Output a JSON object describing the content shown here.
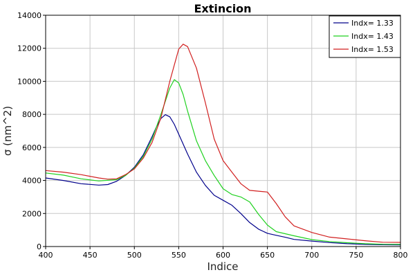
{
  "chart_data": {
    "type": "line",
    "title": "Extincion",
    "xlabel": "Indice",
    "ylabel": "σ (nm^2)",
    "xlim": [
      400,
      800
    ],
    "ylim": [
      0,
      14000
    ],
    "xticks": [
      400,
      450,
      500,
      550,
      600,
      650,
      700,
      750,
      800
    ],
    "yticks": [
      0,
      2000,
      4000,
      6000,
      8000,
      10000,
      12000,
      14000
    ],
    "grid": true,
    "legend_position": "top-right",
    "series": [
      {
        "name": "Indx= 1.33",
        "color": "#00008b",
        "x": [
          400,
          420,
          440,
          460,
          470,
          480,
          490,
          500,
          510,
          520,
          525,
          530,
          535,
          540,
          545,
          550,
          560,
          570,
          580,
          590,
          600,
          610,
          620,
          630,
          640,
          650,
          660,
          670,
          680,
          700,
          720,
          740,
          760,
          780,
          800
        ],
        "y": [
          4150,
          4000,
          3800,
          3720,
          3750,
          3950,
          4300,
          4800,
          5550,
          6650,
          7250,
          7750,
          7980,
          7850,
          7400,
          6800,
          5600,
          4500,
          3700,
          3100,
          2800,
          2500,
          2000,
          1450,
          1050,
          800,
          680,
          560,
          430,
          330,
          240,
          170,
          130,
          110,
          100
        ]
      },
      {
        "name": "Indx= 1.43",
        "color": "#1fd11f",
        "x": [
          400,
          420,
          440,
          460,
          480,
          490,
          500,
          510,
          520,
          530,
          540,
          545,
          550,
          555,
          560,
          570,
          580,
          590,
          600,
          610,
          620,
          630,
          640,
          650,
          660,
          680,
          700,
          720,
          740,
          760,
          780,
          800
        ],
        "y": [
          4450,
          4320,
          4100,
          3970,
          4050,
          4300,
          4750,
          5450,
          6500,
          8000,
          9600,
          10100,
          9900,
          9200,
          8200,
          6400,
          5200,
          4300,
          3500,
          3150,
          3000,
          2700,
          1950,
          1300,
          900,
          650,
          420,
          300,
          230,
          170,
          140,
          130
        ]
      },
      {
        "name": "Indx= 1.53",
        "color": "#d11f1f",
        "x": [
          400,
          420,
          440,
          460,
          470,
          480,
          490,
          500,
          510,
          520,
          530,
          540,
          550,
          555,
          560,
          570,
          580,
          590,
          600,
          610,
          620,
          630,
          640,
          650,
          660,
          670,
          680,
          700,
          720,
          740,
          760,
          780,
          800
        ],
        "y": [
          4600,
          4500,
          4350,
          4150,
          4080,
          4100,
          4350,
          4700,
          5350,
          6300,
          7800,
          10000,
          11950,
          12250,
          12100,
          10800,
          8700,
          6500,
          5200,
          4500,
          3800,
          3400,
          3350,
          3300,
          2600,
          1800,
          1250,
          850,
          570,
          460,
          350,
          260,
          250
        ]
      }
    ]
  }
}
